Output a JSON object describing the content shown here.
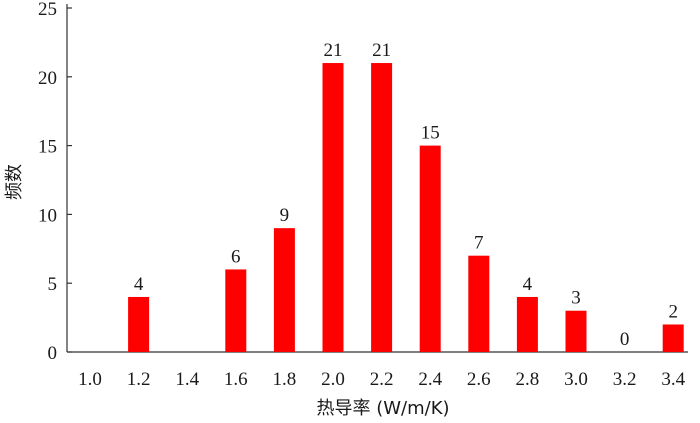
{
  "chart_data": {
    "type": "bar",
    "categories": [
      "1.0",
      "1.2",
      "1.4",
      "1.6",
      "1.8",
      "2.0",
      "2.2",
      "2.4",
      "2.6",
      "2.8",
      "3.0",
      "3.2",
      "3.4"
    ],
    "values": [
      null,
      4,
      null,
      6,
      9,
      21,
      21,
      15,
      7,
      4,
      3,
      0,
      2
    ],
    "data_labels": [
      "",
      "4",
      "",
      "6",
      "9",
      "21",
      "21",
      "15",
      "7",
      "4",
      "3",
      "0",
      "2"
    ],
    "title": "",
    "xlabel": "热导率 (W/m/K)",
    "ylabel": "频数",
    "ylim": [
      0,
      25
    ],
    "yticks": [
      "0",
      "5",
      "10",
      "15",
      "20",
      "25"
    ],
    "bar_color": "#ff0000",
    "grid": false,
    "legend": "none"
  }
}
